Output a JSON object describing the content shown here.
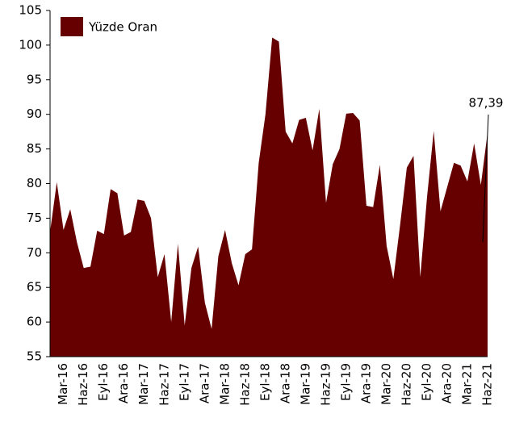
{
  "chart_data": {
    "type": "area",
    "color": "#660000",
    "legend": "top-left",
    "series": [
      {
        "name": "Yüzde Oran",
        "color": "#660000",
        "values": [
          73,
          80.2,
          73.3,
          76.3,
          71.5,
          67.8,
          68,
          73.2,
          72.7,
          79.2,
          78.6,
          72.5,
          73,
          77.7,
          77.5,
          75,
          66.5,
          69.8,
          60,
          71.3,
          59.5,
          67.8,
          70.9,
          62.8,
          59,
          69.5,
          73.3,
          68.5,
          65.3,
          69.8,
          70.5,
          83,
          90,
          101.1,
          100.5,
          87.5,
          85.8,
          89.2,
          89.5,
          84.8,
          90.8,
          77.2,
          82.8,
          85,
          90.1,
          90.2,
          89.1,
          76.8,
          76.6,
          82.7,
          71,
          66.2,
          74,
          82.3,
          84,
          66.5,
          78,
          87.6,
          76,
          79.5,
          83,
          82.6,
          80.3,
          85.8,
          79.8,
          87.39
        ],
        "value_labels": [
          null,
          null,
          null,
          null,
          null,
          null,
          null,
          null,
          null,
          null,
          null,
          null,
          null,
          null,
          null,
          null,
          null,
          null,
          null,
          null,
          null,
          null,
          null,
          null,
          null,
          null,
          null,
          null,
          null,
          null,
          null,
          null,
          null,
          null,
          null,
          null,
          null,
          null,
          null,
          null,
          null,
          null,
          null,
          null,
          null,
          null,
          null,
          null,
          null,
          null,
          null,
          null,
          null,
          null,
          null,
          null,
          null,
          null,
          null,
          null,
          null,
          null,
          null,
          null,
          null,
          "87,39"
        ]
      }
    ],
    "categories": [
      null,
      null,
      "Mar-16",
      null,
      null,
      "Haz-16",
      null,
      null,
      "Eyl-16",
      null,
      null,
      "Ara-16",
      null,
      null,
      "Mar-17",
      null,
      null,
      "Haz-17",
      null,
      null,
      "Eyl-17",
      null,
      null,
      "Ara-17",
      null,
      null,
      "Mar-18",
      null,
      null,
      "Haz-18",
      null,
      null,
      "Eyl-18",
      null,
      null,
      "Ara-18",
      null,
      null,
      "Mar-19",
      null,
      null,
      "Haz-19",
      null,
      null,
      "Eyl-19",
      null,
      null,
      "Ara-19",
      null,
      null,
      "Mar-20",
      null,
      null,
      "Haz-20",
      null,
      null,
      "Eyl-20",
      null,
      null,
      "Ara-20",
      null,
      null,
      "Mar-21",
      null,
      null,
      "Haz-21"
    ],
    "ylim": [
      55,
      105
    ],
    "yticks": [
      55,
      60,
      65,
      70,
      75,
      80,
      85,
      90,
      95,
      100,
      105
    ]
  }
}
